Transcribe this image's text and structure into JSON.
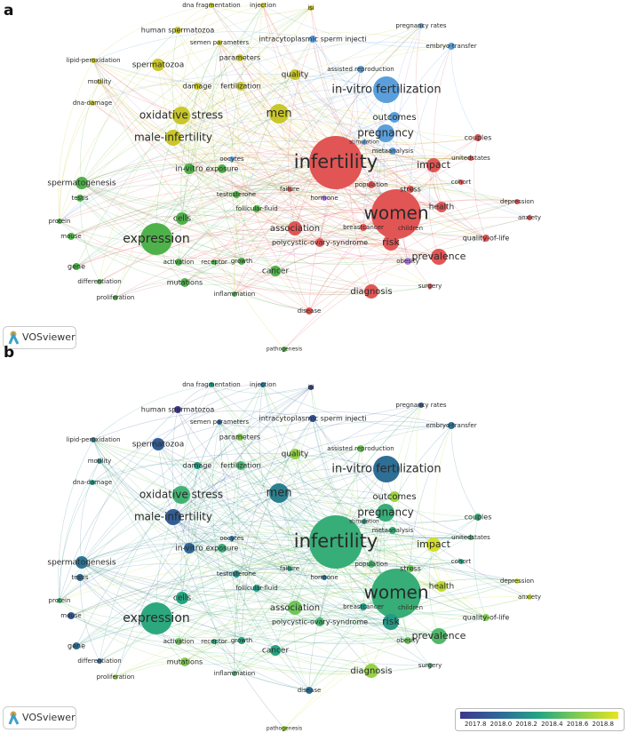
{
  "panels": [
    {
      "label": "a",
      "logo": "VOSviewer",
      "nodes": [
        "dna fragmentation",
        "injection",
        "isi",
        "pregnancy rates",
        "human spermatozoa",
        "semen parameters",
        "intracytoplasmic sperm injecti",
        "embryo-transfer",
        "lipid-peroxidation",
        "spermatozoa",
        "parameters",
        "quality",
        "assisted reproduction",
        "motility",
        "damage",
        "fertilization",
        "in-vitro fertilization",
        "dna-damage",
        "oxidative stress",
        "men",
        "outcomes",
        "pregnancy",
        "male-infertility",
        "stimulation",
        "couples",
        "metaanalysis",
        "infertility",
        "impact",
        "unitedstates",
        "oocytes",
        "in-vitro",
        "exposure",
        "population",
        "cohort",
        "spermatogenesis",
        "failure",
        "stress",
        "testosterone",
        "hormone",
        "testis",
        "follicular-fluid",
        "cells",
        "women",
        "health",
        "protein",
        "depression",
        "anxiety",
        "association",
        "breastcancer",
        "children",
        "mouse",
        "polycystic-ovary-syndrome",
        "expression",
        "risk",
        "quality-of-life",
        "prevalence",
        "gene",
        "activation",
        "receptor",
        "growth",
        "obesity",
        "differentiation",
        "mutations",
        "cancer",
        "surgery",
        "diagnosis",
        "proliferation",
        "inflammation",
        "disease",
        "pathogenesis"
      ]
    },
    {
      "label": "b",
      "logo": "VOSviewer",
      "nodes": [
        "dna fragmentation",
        "injection",
        "isi",
        "pregnancy rates",
        "human spermatozoa",
        "semen parameters",
        "intracytoplasmic sperm injecti",
        "embryo-transfer",
        "lipid-peroxidation",
        "spermatozoa",
        "parameters",
        "quality",
        "assisted reproduction",
        "motility",
        "damage",
        "fertilization",
        "in-vitro fertilization",
        "dna-damage",
        "oxidative stress",
        "men",
        "outcomes",
        "pregnancy",
        "male-infertility",
        "stimulation",
        "couples",
        "metaanalysis",
        "infertility",
        "impact",
        "unitedstates",
        "oocytes",
        "in-vitro",
        "exposure",
        "population",
        "cohort",
        "spermatogenesis",
        "failure",
        "stress",
        "testosterone",
        "hormone",
        "testis",
        "follicular-fluid",
        "cells",
        "women",
        "health",
        "protein",
        "depression",
        "anxiety",
        "association",
        "breastcancer",
        "children",
        "mouse",
        "polycystic-ovary-syndrome",
        "expression",
        "risk",
        "quality-of-life",
        "prevalence",
        "gene",
        "activation",
        "receptor",
        "growth",
        "obesity",
        "differentiation",
        "mutations",
        "cancer",
        "surgery",
        "diagnosis",
        "proliferation",
        "inflammation",
        "disease",
        "pathogenesis"
      ],
      "colorbar": {
        "ticks": [
          "2017.8",
          "2018.0",
          "2018.2",
          "2018.4",
          "2018.6",
          "2018.8"
        ]
      }
    }
  ]
}
